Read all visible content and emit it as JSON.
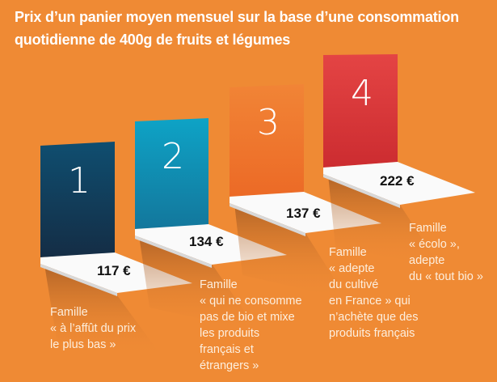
{
  "title": "Prix d’un panier moyen mensuel sur la base d’une consommation quotidienne de 400g de fruits et légumes",
  "colors": {
    "background": "#ef8a34",
    "step_1": "#0f4566",
    "step_2": "#1290b6",
    "step_3": "#ef7a30",
    "step_4": "#d83636"
  },
  "steps": [
    {
      "number": "1",
      "price": "117 €",
      "label": "Famille\n« à l’affût du prix\nle plus bas  »"
    },
    {
      "number": "2",
      "price": "134 €",
      "label": "Famille\n« qui ne consomme\npas de bio et mixe\nles produits\nfrançais et\nétrangers »"
    },
    {
      "number": "3",
      "price": "137 €",
      "label": "Famille\n« adepte\ndu cultivé\nen France » qui\nn’achète que des\nproduits français"
    },
    {
      "number": "4",
      "price": "222 €",
      "label": "Famille\n« écolo »,\nadepte\ndu « tout bio »"
    }
  ]
}
